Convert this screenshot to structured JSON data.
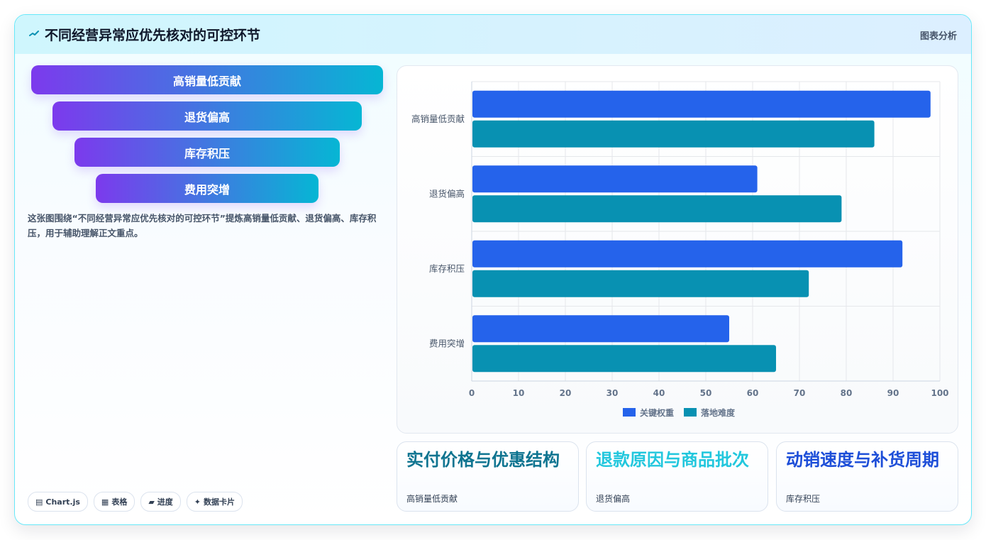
{
  "header": {
    "title": "不同经营异常应优先核对的可控环节",
    "tag": "图表分析"
  },
  "funnel": [
    "高销量低贡献",
    "退货偏高",
    "库存积压",
    "费用突增"
  ],
  "description": "这张图围绕“不同经营异常应优先核对的可控环节”提炼高销量低贡献、退货偏高、库存积压，用于辅助理解正文重点。",
  "chips": [
    {
      "icon": "▤",
      "label": "Chart.js"
    },
    {
      "icon": "▦",
      "label": "表格"
    },
    {
      "icon": "▰",
      "label": "进度"
    },
    {
      "icon": "✦",
      "label": "数据卡片"
    }
  ],
  "chart_data": {
    "type": "bar",
    "orientation": "horizontal",
    "categories": [
      "高销量低贡献",
      "退货偏高",
      "库存积压",
      "费用突增"
    ],
    "series": [
      {
        "name": "关键权重",
        "values": [
          98,
          61,
          92,
          55
        ],
        "color": "#2563eb"
      },
      {
        "name": "落地难度",
        "values": [
          86,
          79,
          72,
          65
        ],
        "color": "#0891b2"
      }
    ],
    "xlim": [
      0,
      100
    ],
    "xticks": [
      "0",
      "10",
      "20",
      "30",
      "40",
      "50",
      "60",
      "70",
      "80",
      "90",
      "100"
    ],
    "grid": true,
    "legend": "bottom"
  },
  "cards": [
    {
      "title": "实付价格与优惠结构",
      "sub": "高销量低贡献",
      "color": "#0e7490"
    },
    {
      "title": "退款原因与商品批次",
      "sub": "退货偏高",
      "color": "#22c7dd"
    },
    {
      "title": "动销速度与补货周期",
      "sub": "库存积压",
      "color": "#1d4ed8"
    }
  ]
}
